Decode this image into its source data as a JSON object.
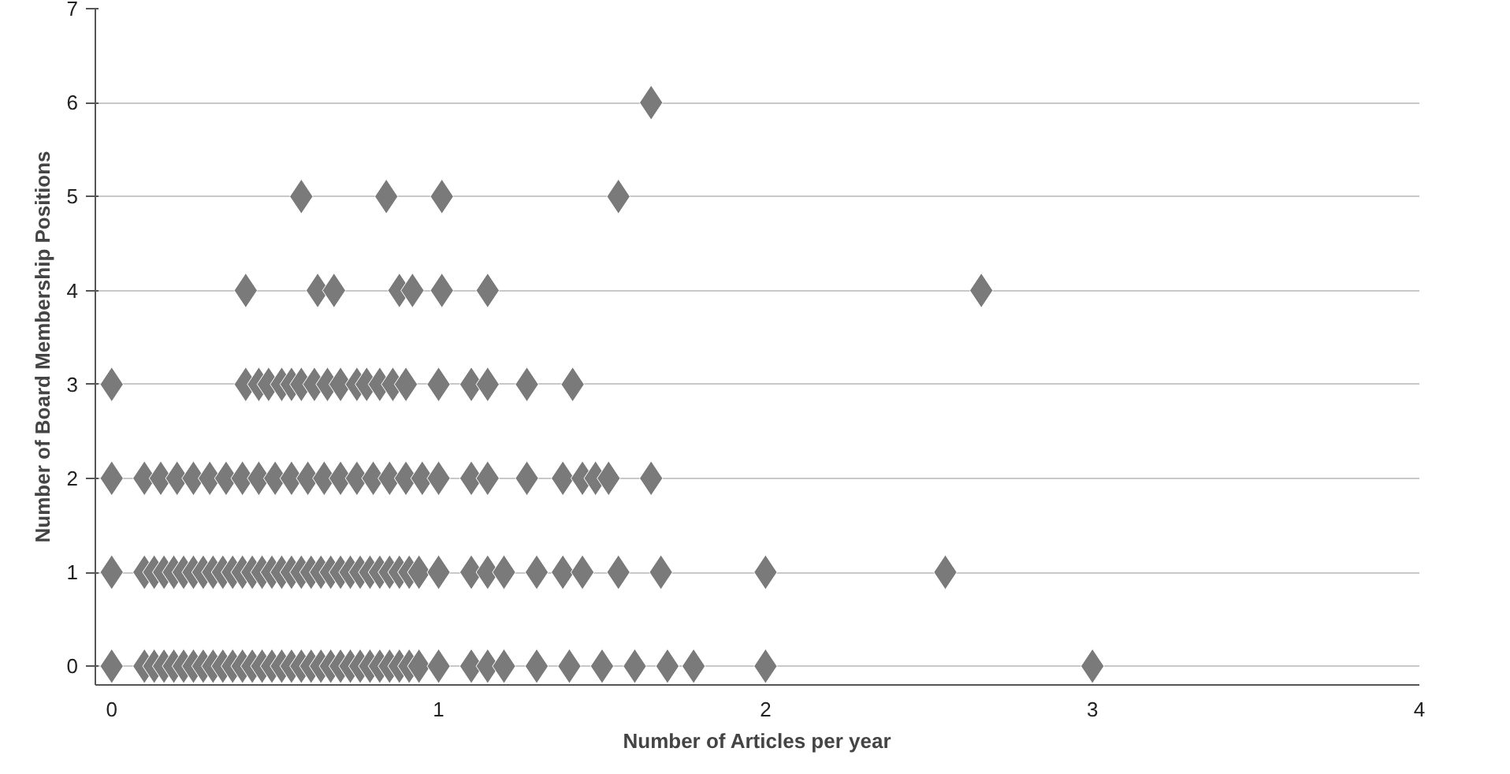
{
  "chart_data": {
    "type": "scatter",
    "xlabel": "Number of Articles per year",
    "ylabel": "Number of Board Membership Positions",
    "xlim": [
      -0.05,
      4
    ],
    "ylim": [
      -0.2,
      7
    ],
    "xticks": [
      0,
      1,
      2,
      3,
      4
    ],
    "yticks": [
      0,
      1,
      2,
      3,
      4,
      5,
      6,
      7
    ],
    "grid": "y",
    "marker": "diamond",
    "series": [
      {
        "color": "#7a7a7a",
        "x": [
          0,
          0.1,
          0.13,
          0.16,
          0.19,
          0.22,
          0.25,
          0.28,
          0.31,
          0.34,
          0.37,
          0.4,
          0.43,
          0.46,
          0.49,
          0.52,
          0.55,
          0.58,
          0.61,
          0.64,
          0.67,
          0.7,
          0.73,
          0.76,
          0.79,
          0.82,
          0.85,
          0.88,
          0.91,
          0.94,
          1.0,
          1.1,
          1.15,
          1.2,
          1.3,
          1.4,
          1.5,
          1.6,
          1.7,
          1.78,
          2.0,
          3.0
        ],
        "values": [
          0,
          0,
          0,
          0,
          0,
          0,
          0,
          0,
          0,
          0,
          0,
          0,
          0,
          0,
          0,
          0,
          0,
          0,
          0,
          0,
          0,
          0,
          0,
          0,
          0,
          0,
          0,
          0,
          0,
          0,
          0,
          0,
          0,
          0,
          0,
          0,
          0,
          0,
          0,
          0,
          0,
          0
        ]
      },
      {
        "color": "#7a7a7a",
        "x": [
          0,
          0.1,
          0.13,
          0.16,
          0.19,
          0.22,
          0.25,
          0.28,
          0.31,
          0.34,
          0.37,
          0.4,
          0.43,
          0.46,
          0.49,
          0.52,
          0.55,
          0.58,
          0.61,
          0.64,
          0.67,
          0.7,
          0.73,
          0.76,
          0.79,
          0.82,
          0.85,
          0.88,
          0.91,
          0.94,
          1.0,
          1.1,
          1.15,
          1.2,
          1.3,
          1.38,
          1.44,
          1.55,
          1.68,
          2.0,
          2.55
        ],
        "values": [
          1,
          1,
          1,
          1,
          1,
          1,
          1,
          1,
          1,
          1,
          1,
          1,
          1,
          1,
          1,
          1,
          1,
          1,
          1,
          1,
          1,
          1,
          1,
          1,
          1,
          1,
          1,
          1,
          1,
          1,
          1,
          1,
          1,
          1,
          1,
          1,
          1,
          1,
          1,
          1,
          1
        ]
      },
      {
        "color": "#7a7a7a",
        "x": [
          0,
          0.1,
          0.15,
          0.2,
          0.25,
          0.3,
          0.35,
          0.4,
          0.45,
          0.5,
          0.55,
          0.6,
          0.65,
          0.7,
          0.75,
          0.8,
          0.85,
          0.9,
          0.95,
          1.0,
          1.1,
          1.15,
          1.27,
          1.38,
          1.44,
          1.48,
          1.52,
          1.65
        ],
        "values": [
          2,
          2,
          2,
          2,
          2,
          2,
          2,
          2,
          2,
          2,
          2,
          2,
          2,
          2,
          2,
          2,
          2,
          2,
          2,
          2,
          2,
          2,
          2,
          2,
          2,
          2,
          2,
          2
        ]
      },
      {
        "color": "#7a7a7a",
        "x": [
          0,
          0.41,
          0.45,
          0.48,
          0.52,
          0.55,
          0.58,
          0.62,
          0.66,
          0.7,
          0.75,
          0.78,
          0.82,
          0.86,
          0.9,
          1.0,
          1.1,
          1.15,
          1.27,
          1.41
        ],
        "values": [
          3,
          3,
          3,
          3,
          3,
          3,
          3,
          3,
          3,
          3,
          3,
          3,
          3,
          3,
          3,
          3,
          3,
          3,
          3,
          3
        ]
      },
      {
        "color": "#7a7a7a",
        "x": [
          0.41,
          0.63,
          0.68,
          0.88,
          0.92,
          1.01,
          1.15,
          2.66
        ],
        "values": [
          4,
          4,
          4,
          4,
          4,
          4,
          4,
          4
        ]
      },
      {
        "color": "#7a7a7a",
        "x": [
          0.58,
          0.84,
          1.01,
          1.55
        ],
        "values": [
          5,
          5,
          5,
          5
        ]
      },
      {
        "color": "#7a7a7a",
        "x": [
          1.65
        ],
        "values": [
          6
        ]
      }
    ]
  }
}
